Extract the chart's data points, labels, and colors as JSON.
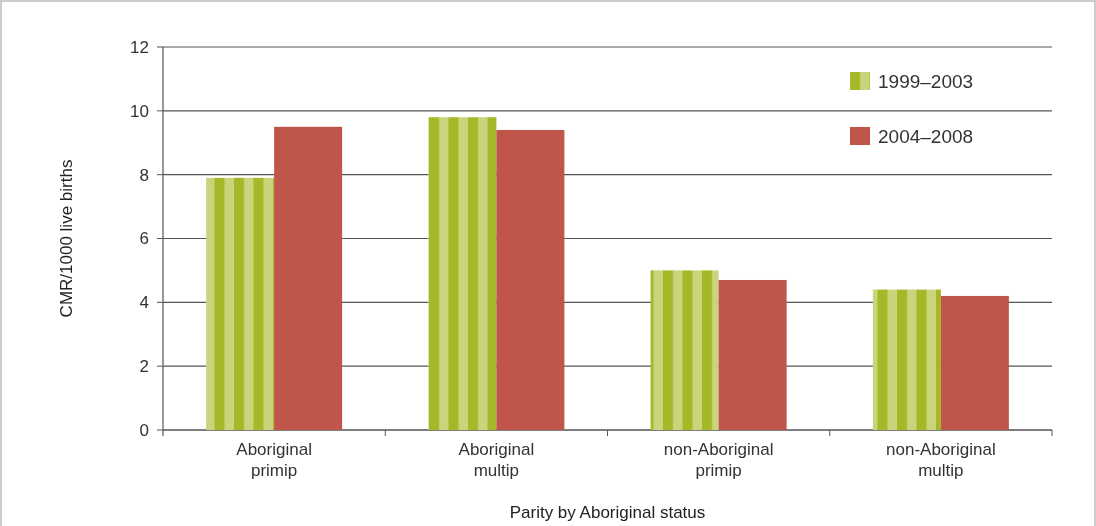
{
  "chart_data": {
    "type": "bar",
    "xlabel": "Parity by Aboriginal status",
    "ylabel": "CMR/1000 live births",
    "categories": [
      "Aboriginal primip",
      "Aboriginal multip",
      "non-Aboriginal primip",
      "non-Aboriginal multip"
    ],
    "series": [
      {
        "name": "1999–2003",
        "color": "#a6b727",
        "values": [
          7.9,
          9.8,
          5.0,
          4.4
        ]
      },
      {
        "name": "2004–2008",
        "color": "#c0554a",
        "values": [
          9.5,
          9.4,
          4.7,
          4.2
        ]
      }
    ],
    "ylim": [
      0,
      12
    ],
    "yticks": [
      0,
      2,
      4,
      6,
      8,
      10,
      12
    ],
    "grid": "y",
    "legend": "top right"
  }
}
